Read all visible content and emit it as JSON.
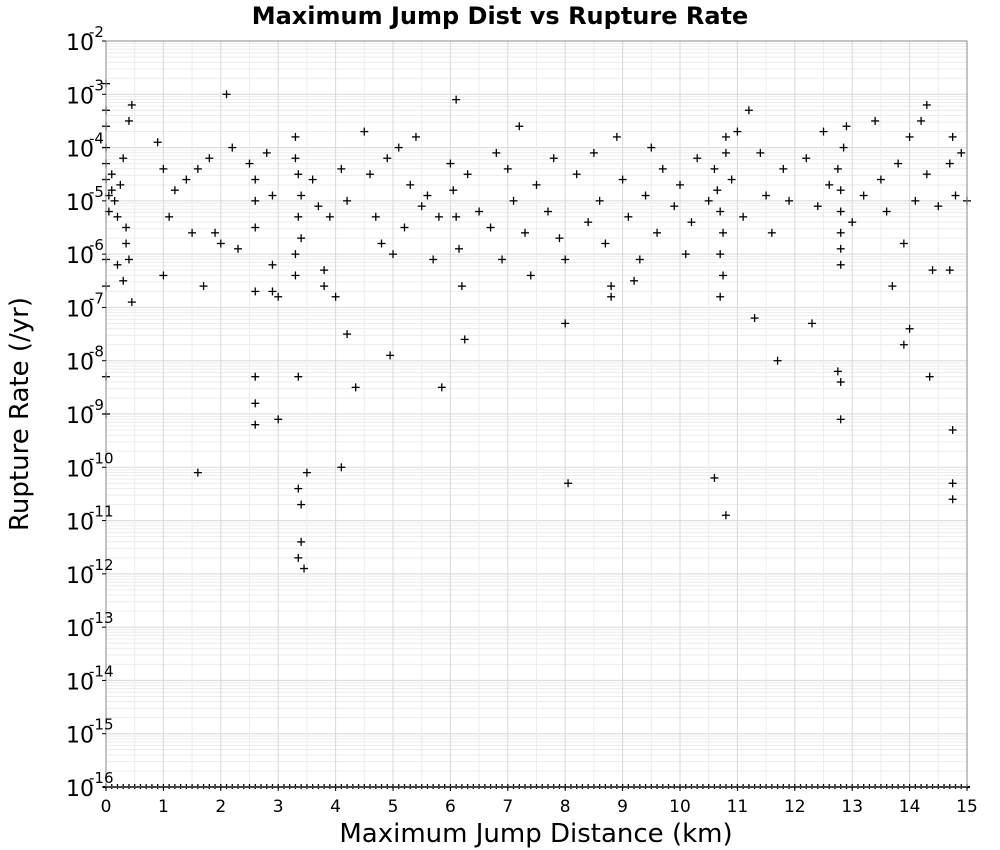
{
  "chart_data": {
    "type": "scatter",
    "title": "Maximum Jump Dist vs Rupture Rate",
    "xlabel": "Maximum Jump Distance (km)",
    "ylabel": "Rupture Rate (/yr)",
    "xlim": [
      0,
      15
    ],
    "ylim_log10": [
      -16,
      -2
    ],
    "y_scale": "log",
    "grid": true,
    "marker": "+",
    "marker_color": "#000000",
    "x_ticks": [
      "0",
      "1",
      "2",
      "3",
      "4",
      "5",
      "6",
      "7",
      "8",
      "9",
      "10",
      "11",
      "12",
      "13",
      "14",
      "15"
    ],
    "y_tick_base": "10",
    "y_tick_exponents": [
      "-16",
      "-15",
      "-14",
      "-13",
      "-12",
      "-11",
      "-10",
      "-9",
      "-8",
      "-7",
      "-6",
      "-5",
      "-4",
      "-3",
      "-2"
    ],
    "series": [
      {
        "points": [
          [
            0.0,
            -2.8
          ],
          [
            0.0,
            -3.3
          ],
          [
            0.0,
            -3.6
          ],
          [
            0.0,
            -4.0
          ],
          [
            0.0,
            -4.3
          ],
          [
            0.0,
            -4.6
          ],
          [
            0.05,
            -4.9
          ],
          [
            0.05,
            -5.2
          ],
          [
            0.0,
            -6.1
          ],
          [
            0.0,
            -6.6
          ],
          [
            0.0,
            -8.3
          ],
          [
            0.0,
            -9.0
          ],
          [
            0.1,
            -4.5
          ],
          [
            0.1,
            -4.8
          ],
          [
            0.15,
            -5.0
          ],
          [
            0.2,
            -5.3
          ],
          [
            0.25,
            -4.7
          ],
          [
            0.3,
            -4.2
          ],
          [
            0.35,
            -5.5
          ],
          [
            0.4,
            -3.5
          ],
          [
            0.45,
            -3.2
          ],
          [
            0.4,
            -6.1
          ],
          [
            0.3,
            -6.5
          ],
          [
            0.45,
            -6.9
          ],
          [
            0.35,
            -5.8
          ],
          [
            0.2,
            -6.2
          ],
          [
            0.9,
            -3.9
          ],
          [
            1.0,
            -4.4
          ],
          [
            1.1,
            -5.3
          ],
          [
            1.0,
            -6.4
          ],
          [
            1.2,
            -4.8
          ],
          [
            1.4,
            -4.6
          ],
          [
            1.5,
            -5.6
          ],
          [
            1.6,
            -4.4
          ],
          [
            1.7,
            -6.6
          ],
          [
            1.8,
            -4.2
          ],
          [
            1.9,
            -5.6
          ],
          [
            2.0,
            -5.8
          ],
          [
            1.6,
            -10.1
          ],
          [
            2.1,
            -3.0
          ],
          [
            2.2,
            -4.0
          ],
          [
            2.3,
            -5.9
          ],
          [
            2.5,
            -4.3
          ],
          [
            2.6,
            -4.6
          ],
          [
            2.6,
            -5.0
          ],
          [
            2.6,
            -5.5
          ],
          [
            2.6,
            -6.7
          ],
          [
            2.6,
            -8.3
          ],
          [
            2.6,
            -8.8
          ],
          [
            2.6,
            -9.2
          ],
          [
            2.8,
            -4.1
          ],
          [
            2.9,
            -4.9
          ],
          [
            2.9,
            -6.2
          ],
          [
            2.9,
            -6.7
          ],
          [
            3.0,
            -9.1
          ],
          [
            3.0,
            -6.8
          ],
          [
            3.3,
            -3.8
          ],
          [
            3.3,
            -4.2
          ],
          [
            3.35,
            -4.5
          ],
          [
            3.4,
            -4.9
          ],
          [
            3.35,
            -5.3
          ],
          [
            3.4,
            -5.7
          ],
          [
            3.3,
            -6.0
          ],
          [
            3.3,
            -6.4
          ],
          [
            3.35,
            -8.3
          ],
          [
            3.4,
            -10.7
          ],
          [
            3.35,
            -10.4
          ],
          [
            3.4,
            -11.4
          ],
          [
            3.35,
            -11.7
          ],
          [
            3.45,
            -11.9
          ],
          [
            3.5,
            -10.1
          ],
          [
            3.6,
            -4.6
          ],
          [
            3.7,
            -5.1
          ],
          [
            3.8,
            -6.3
          ],
          [
            3.8,
            -6.6
          ],
          [
            3.9,
            -5.3
          ],
          [
            4.0,
            -6.8
          ],
          [
            4.1,
            -4.4
          ],
          [
            4.2,
            -5.0
          ],
          [
            4.2,
            -7.5
          ],
          [
            4.35,
            -8.5
          ],
          [
            4.1,
            -10.0
          ],
          [
            4.5,
            -3.7
          ],
          [
            4.6,
            -4.5
          ],
          [
            4.7,
            -5.3
          ],
          [
            4.8,
            -5.8
          ],
          [
            4.9,
            -4.2
          ],
          [
            5.0,
            -6.0
          ],
          [
            4.95,
            -7.9
          ],
          [
            5.1,
            -4.0
          ],
          [
            5.2,
            -5.5
          ],
          [
            5.3,
            -4.7
          ],
          [
            5.4,
            -3.8
          ],
          [
            5.5,
            -5.1
          ],
          [
            5.6,
            -4.9
          ],
          [
            5.7,
            -6.1
          ],
          [
            5.8,
            -5.3
          ],
          [
            5.85,
            -8.5
          ],
          [
            6.0,
            -4.3
          ],
          [
            6.05,
            -4.8
          ],
          [
            6.1,
            -5.3
          ],
          [
            6.15,
            -5.9
          ],
          [
            6.1,
            -3.1
          ],
          [
            6.2,
            -6.6
          ],
          [
            6.25,
            -7.6
          ],
          [
            6.3,
            -4.5
          ],
          [
            6.5,
            -5.2
          ],
          [
            6.7,
            -5.5
          ],
          [
            6.8,
            -4.1
          ],
          [
            6.9,
            -6.1
          ],
          [
            7.0,
            -4.4
          ],
          [
            7.1,
            -5.0
          ],
          [
            7.2,
            -3.6
          ],
          [
            7.3,
            -5.6
          ],
          [
            7.4,
            -6.4
          ],
          [
            7.5,
            -4.7
          ],
          [
            7.7,
            -5.2
          ],
          [
            7.8,
            -4.2
          ],
          [
            7.9,
            -5.7
          ],
          [
            8.0,
            -6.1
          ],
          [
            8.0,
            -7.3
          ],
          [
            8.05,
            -10.3
          ],
          [
            8.2,
            -4.5
          ],
          [
            8.4,
            -5.4
          ],
          [
            8.5,
            -4.1
          ],
          [
            8.6,
            -5.0
          ],
          [
            8.7,
            -5.8
          ],
          [
            8.8,
            -6.6
          ],
          [
            8.8,
            -6.8
          ],
          [
            8.9,
            -3.8
          ],
          [
            9.0,
            -4.6
          ],
          [
            9.1,
            -5.3
          ],
          [
            9.2,
            -6.5
          ],
          [
            9.3,
            -6.1
          ],
          [
            9.4,
            -4.9
          ],
          [
            9.5,
            -4.0
          ],
          [
            9.6,
            -5.6
          ],
          [
            9.7,
            -4.4
          ],
          [
            9.9,
            -5.1
          ],
          [
            10.0,
            -4.7
          ],
          [
            10.1,
            -6.0
          ],
          [
            10.2,
            -5.4
          ],
          [
            10.3,
            -4.2
          ],
          [
            10.5,
            -5.0
          ],
          [
            10.6,
            -4.4
          ],
          [
            10.65,
            -4.8
          ],
          [
            10.7,
            -5.2
          ],
          [
            10.75,
            -5.6
          ],
          [
            10.7,
            -6.0
          ],
          [
            10.75,
            -6.4
          ],
          [
            10.8,
            -4.1
          ],
          [
            10.8,
            -3.8
          ],
          [
            10.7,
            -6.8
          ],
          [
            10.6,
            -10.2
          ],
          [
            10.8,
            -10.9
          ],
          [
            10.9,
            -4.6
          ],
          [
            11.0,
            -3.7
          ],
          [
            11.1,
            -5.3
          ],
          [
            11.2,
            -3.3
          ],
          [
            11.3,
            -7.2
          ],
          [
            11.4,
            -4.1
          ],
          [
            11.5,
            -4.9
          ],
          [
            11.6,
            -5.6
          ],
          [
            11.7,
            -8.0
          ],
          [
            11.8,
            -4.4
          ],
          [
            11.9,
            -5.0
          ],
          [
            12.3,
            -7.3
          ],
          [
            12.2,
            -4.2
          ],
          [
            12.4,
            -5.1
          ],
          [
            12.5,
            -3.7
          ],
          [
            12.6,
            -4.7
          ],
          [
            12.75,
            -4.4
          ],
          [
            12.8,
            -4.8
          ],
          [
            12.8,
            -5.2
          ],
          [
            12.8,
            -5.6
          ],
          [
            12.8,
            -5.9
          ],
          [
            12.8,
            -6.2
          ],
          [
            12.75,
            -8.2
          ],
          [
            12.8,
            -8.4
          ],
          [
            12.8,
            -9.1
          ],
          [
            12.85,
            -4.0
          ],
          [
            12.9,
            -3.6
          ],
          [
            13.0,
            -5.4
          ],
          [
            13.2,
            -4.9
          ],
          [
            13.4,
            -3.5
          ],
          [
            13.5,
            -4.6
          ],
          [
            13.6,
            -5.2
          ],
          [
            13.7,
            -6.6
          ],
          [
            13.8,
            -4.3
          ],
          [
            13.9,
            -5.8
          ],
          [
            13.9,
            -7.7
          ],
          [
            14.0,
            -7.4
          ],
          [
            14.0,
            -3.8
          ],
          [
            14.1,
            -5.0
          ],
          [
            14.2,
            -3.5
          ],
          [
            14.3,
            -3.2
          ],
          [
            14.3,
            -4.5
          ],
          [
            14.35,
            -8.3
          ],
          [
            14.4,
            -6.3
          ],
          [
            14.5,
            -5.1
          ],
          [
            14.7,
            -4.3
          ],
          [
            14.7,
            -6.3
          ],
          [
            14.75,
            -3.8
          ],
          [
            14.8,
            -4.9
          ],
          [
            14.75,
            -9.3
          ],
          [
            14.75,
            -10.3
          ],
          [
            14.75,
            -10.6
          ],
          [
            14.9,
            -4.1
          ],
          [
            15.0,
            -5.0
          ]
        ]
      },
      {
        "at_floor": true,
        "y": -16,
        "x": [
          0.0,
          0.1,
          0.2,
          0.3,
          0.4,
          0.5,
          0.6,
          0.7,
          0.8,
          0.9,
          1.0,
          1.1,
          1.2,
          1.3,
          1.4,
          1.5,
          1.6,
          1.7,
          1.8,
          1.9,
          2.0,
          2.1,
          2.2,
          2.3,
          2.4,
          2.5,
          2.6,
          2.7,
          2.8,
          2.9,
          3.0,
          3.1,
          3.2,
          3.3,
          3.4,
          3.5,
          3.6,
          3.7,
          3.8,
          3.9,
          4.0,
          4.1,
          4.2,
          4.3,
          4.4,
          4.5,
          4.6,
          4.7,
          4.8,
          4.9,
          5.0,
          5.1,
          5.2,
          5.3,
          5.4,
          5.5,
          5.6,
          5.7,
          5.8,
          5.9,
          6.0,
          6.1,
          6.2,
          6.3,
          6.4,
          6.5,
          6.6,
          6.7,
          6.8,
          6.9,
          7.0,
          7.1,
          7.2,
          7.3,
          7.4,
          7.5,
          7.6,
          7.7,
          7.8,
          7.9,
          8.0,
          8.1,
          8.2,
          8.3,
          8.4,
          8.5,
          8.6,
          8.7,
          8.8,
          8.9,
          9.0,
          9.1,
          9.2,
          9.3,
          9.4,
          9.5,
          9.6,
          9.7,
          9.8,
          9.9,
          10.0,
          10.1,
          10.2,
          10.3,
          10.4,
          10.5,
          10.6,
          10.7,
          10.8,
          10.9,
          11.0,
          11.1,
          11.2,
          11.3,
          11.4,
          11.5,
          11.6,
          11.7,
          11.8,
          11.9,
          12.0,
          12.1,
          12.2,
          12.3,
          12.4,
          12.5,
          12.6,
          12.7,
          12.8,
          12.9,
          13.0,
          13.1,
          13.2,
          13.3,
          13.4,
          13.5,
          13.6,
          13.7,
          13.8,
          13.9,
          14.0,
          14.1,
          14.2,
          14.3,
          14.4,
          14.5,
          14.6,
          14.7,
          14.8,
          14.9,
          15.0
        ]
      }
    ]
  }
}
